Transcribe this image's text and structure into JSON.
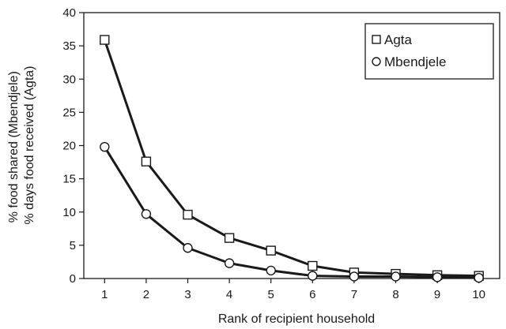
{
  "chart_data": {
    "type": "line",
    "xlabel": "Rank of recipient household",
    "ylabel": [
      "% food shared (Mbendjele)",
      "% days food received (Agta)"
    ],
    "x": [
      1,
      2,
      3,
      4,
      5,
      6,
      7,
      8,
      9,
      10
    ],
    "xlim": [
      0.5,
      10.5
    ],
    "ylim": [
      0,
      40
    ],
    "xticks": [
      1,
      2,
      3,
      4,
      5,
      6,
      7,
      8,
      9,
      10
    ],
    "yticks": [
      0,
      5,
      10,
      15,
      20,
      25,
      30,
      35,
      40
    ],
    "grid": false,
    "legend_position": "top-right",
    "series": [
      {
        "name": "Agta",
        "marker": "square",
        "values": [
          35.9,
          17.6,
          9.6,
          6.1,
          4.2,
          1.9,
          0.9,
          0.7,
          0.5,
          0.4
        ]
      },
      {
        "name": "Mbendjele",
        "marker": "circle",
        "values": [
          19.8,
          9.7,
          4.6,
          2.3,
          1.2,
          0.4,
          0.3,
          0.3,
          0.2,
          0.1
        ]
      }
    ]
  }
}
